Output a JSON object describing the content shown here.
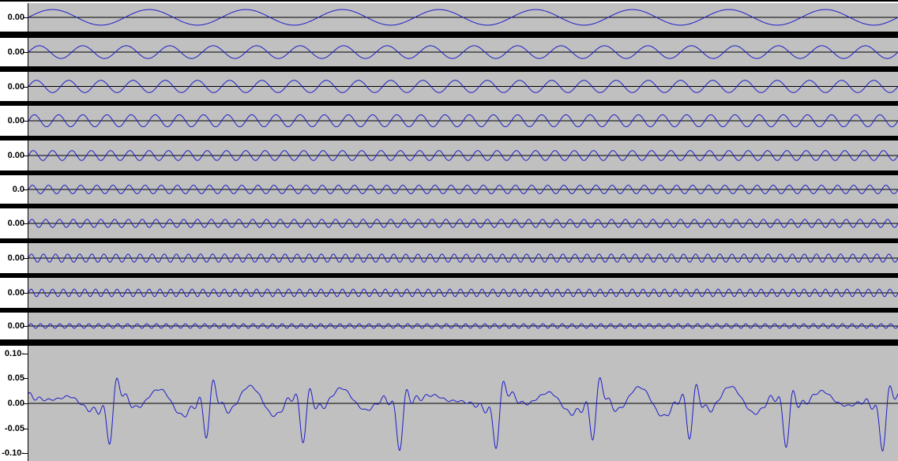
{
  "colors": {
    "background": "#c0c0c0",
    "waveform": "#1d1dc8",
    "center_line": "#000000",
    "separator": "#000000",
    "ruler_bg": "#ffffff"
  },
  "tracks": [
    {
      "id": "tone-1",
      "ticks": [
        "0.00"
      ],
      "frequency_cycles": 9,
      "amplitude": 0.55
    },
    {
      "id": "tone-2",
      "ticks": [
        "0.00"
      ],
      "frequency_cycles": 20,
      "amplitude": 0.45
    },
    {
      "id": "tone-3",
      "ticks": [
        "0.00"
      ],
      "frequency_cycles": 27,
      "amplitude": 0.42
    },
    {
      "id": "tone-4",
      "ticks": [
        "0.00"
      ],
      "frequency_cycles": 36,
      "amplitude": 0.4
    },
    {
      "id": "tone-5",
      "ticks": [
        "0.00"
      ],
      "frequency_cycles": 45,
      "amplitude": 0.33
    },
    {
      "id": "tone-6",
      "ticks": [
        "0.0"
      ],
      "frequency_cycles": 54,
      "amplitude": 0.3
    },
    {
      "id": "tone-7",
      "ticks": [
        "0.00"
      ],
      "frequency_cycles": 63,
      "amplitude": 0.27
    },
    {
      "id": "tone-8",
      "ticks": [
        "0.00"
      ],
      "frequency_cycles": 72,
      "amplitude": 0.27
    },
    {
      "id": "tone-9",
      "ticks": [
        "0.00"
      ],
      "frequency_cycles": 81,
      "amplitude": 0.25
    },
    {
      "id": "tone-10",
      "ticks": [
        "0.00"
      ],
      "frequency_cycles": 90,
      "amplitude": 0.17
    },
    {
      "id": "mix",
      "ticks": [
        "0.10-",
        "0.05",
        "0.00",
        "-0.05",
        "-0.10-"
      ],
      "tick_values": [
        0.1,
        0.05,
        0.0,
        -0.05,
        -0.1
      ],
      "mix": true,
      "amplitude": 1.0
    }
  ]
}
